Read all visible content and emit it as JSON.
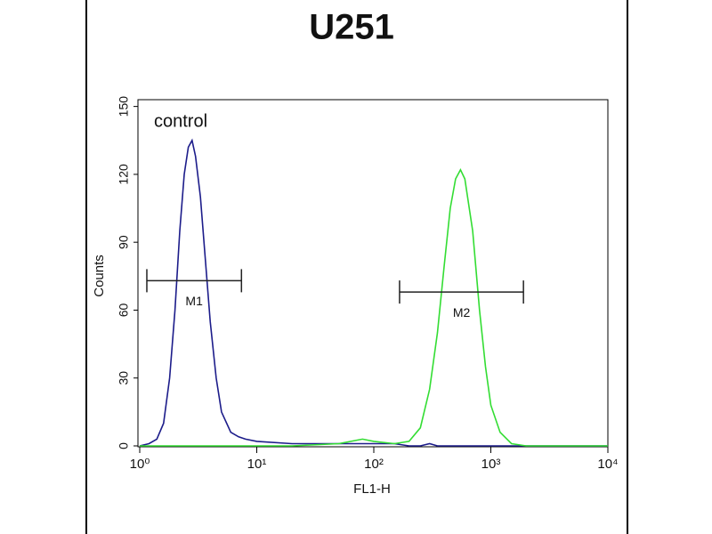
{
  "chart_data": {
    "type": "line",
    "title": "U251",
    "annotation": "control",
    "x_label": "FL1-H",
    "y_label": "Counts",
    "x_scale": "log",
    "x": [
      1,
      1.2,
      1.4,
      1.6,
      1.8,
      2,
      2.2,
      2.4,
      2.6,
      2.8,
      3,
      3.3,
      3.6,
      4,
      4.5,
      5,
      6,
      7,
      8,
      10,
      20,
      50,
      80,
      100,
      150,
      200,
      250,
      300,
      350,
      400,
      450,
      500,
      550,
      600,
      700,
      800,
      900,
      1000,
      1200,
      1500,
      2000,
      5000,
      10000
    ],
    "series": [
      {
        "color": "#1c1c8a",
        "values": [
          0,
          1,
          3,
          10,
          30,
          60,
          95,
          120,
          132,
          135,
          128,
          110,
          85,
          55,
          30,
          15,
          6,
          4,
          3,
          2,
          1,
          1,
          1,
          1,
          1,
          0,
          0,
          1,
          0,
          0,
          0,
          0,
          0,
          0,
          0,
          0,
          0,
          0,
          0,
          0,
          0,
          0,
          0
        ]
      },
      {
        "color": "#33dd33",
        "values": [
          0,
          0,
          0,
          0,
          0,
          0,
          0,
          0,
          0,
          0,
          0,
          0,
          0,
          0,
          0,
          0,
          0,
          0,
          0,
          0,
          0,
          1,
          3,
          2,
          1,
          2,
          8,
          25,
          50,
          80,
          105,
          118,
          122,
          118,
          95,
          60,
          35,
          18,
          6,
          1,
          0,
          0,
          0
        ]
      }
    ],
    "markers": [
      {
        "label": "M1",
        "range": [
          1.15,
          7.4
        ],
        "y": 73
      },
      {
        "label": "M2",
        "range": [
          166,
          1900
        ],
        "y": 68
      }
    ],
    "xlim": [
      1,
      10000
    ],
    "xticks": [
      {
        "value": 1,
        "label": "10⁰"
      },
      {
        "value": 10,
        "label": "10¹"
      },
      {
        "value": 100,
        "label": "10²"
      },
      {
        "value": 1000,
        "label": "10³"
      },
      {
        "value": 10000,
        "label": "10⁴"
      }
    ],
    "ylim": [
      0,
      153
    ],
    "yticks": [
      0,
      30,
      60,
      90,
      120,
      150
    ]
  }
}
